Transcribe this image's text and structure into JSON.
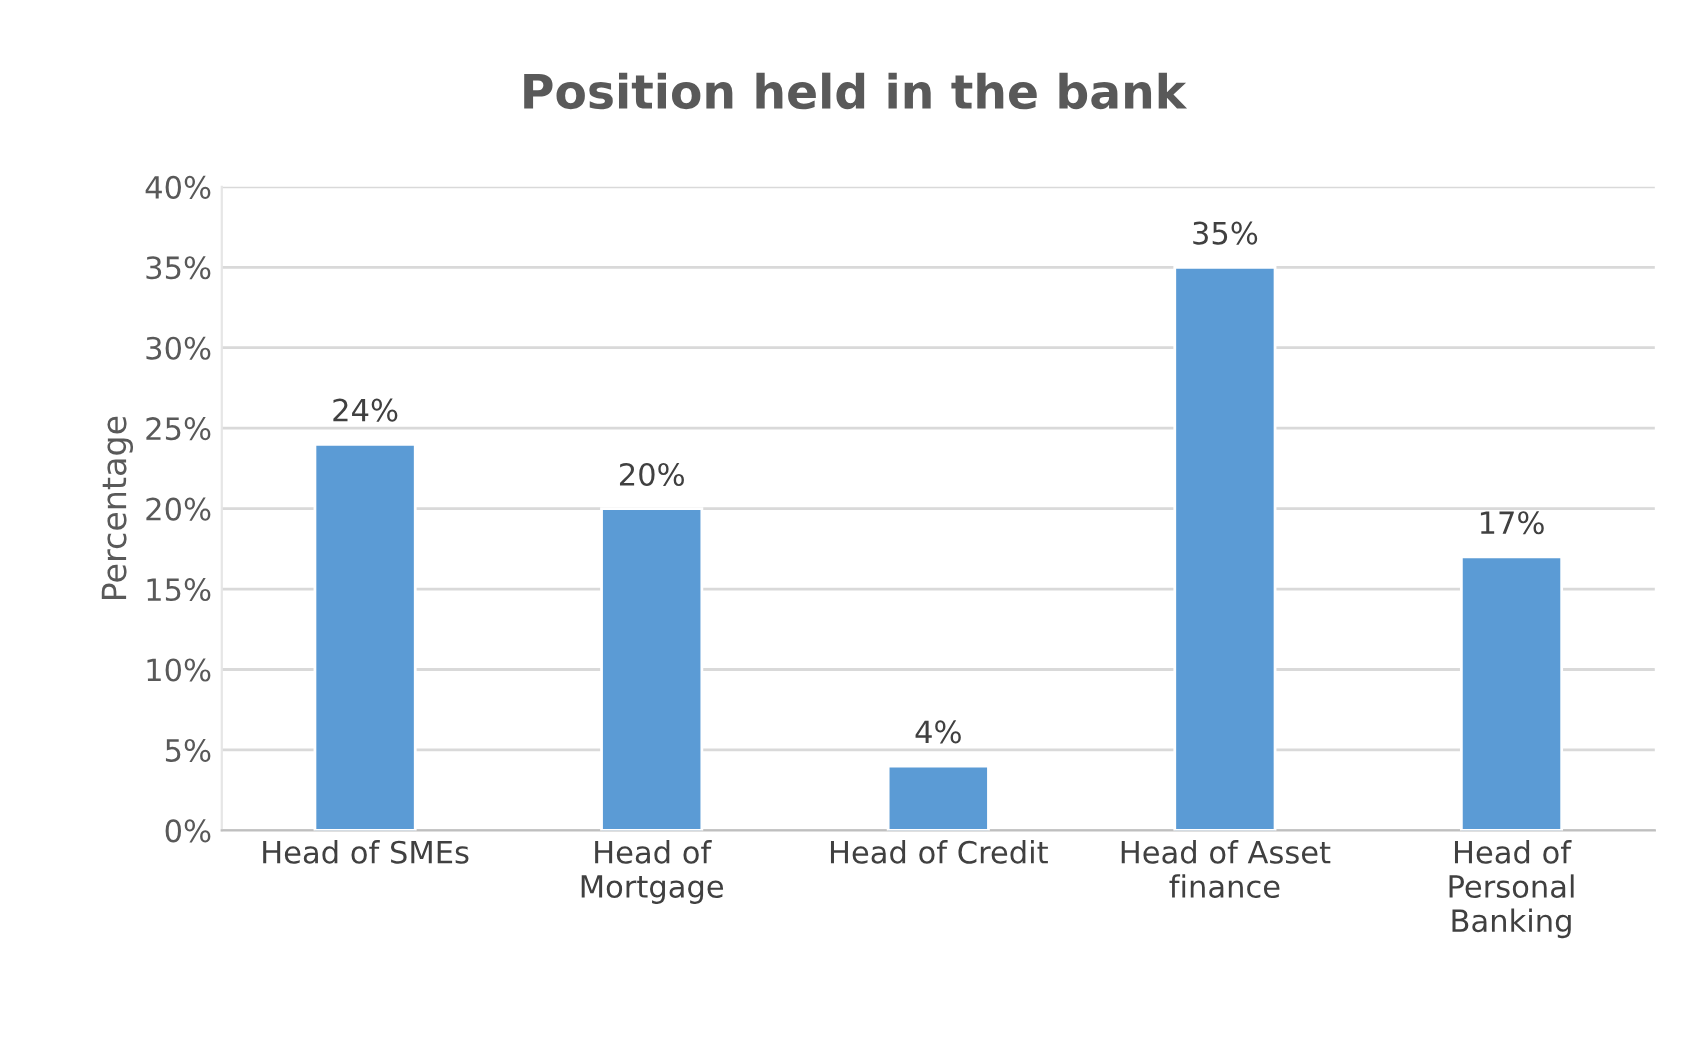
{
  "chart_data": {
    "type": "bar",
    "title": "Position held in the bank",
    "ylabel": "Percentage",
    "categories": [
      "Head of SMEs",
      "Head of\nMortgage",
      "Head of Credit",
      "Head of Asset\nfinance",
      "Head of\nPersonal\nBanking"
    ],
    "values": [
      24,
      20,
      4,
      35,
      17
    ],
    "value_labels": [
      "24%",
      "20%",
      "4%",
      "35%",
      "17%"
    ],
    "color": "#5b9bd5",
    "ylim": [
      0,
      40
    ],
    "yticks": [
      {
        "value": 0,
        "label": "0%"
      },
      {
        "value": 5,
        "label": "5%"
      },
      {
        "value": 10,
        "label": "10%"
      },
      {
        "value": 15,
        "label": "15%"
      },
      {
        "value": 20,
        "label": "20%"
      },
      {
        "value": 25,
        "label": "25%"
      },
      {
        "value": 30,
        "label": "30%"
      },
      {
        "value": 35,
        "label": "35%"
      },
      {
        "value": 40,
        "label": "40%"
      }
    ],
    "grid": "y",
    "legend": false
  }
}
